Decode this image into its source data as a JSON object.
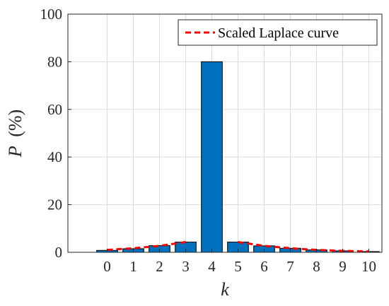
{
  "chart_data": {
    "type": "bar",
    "categories": [
      "0",
      "1",
      "2",
      "3",
      "4",
      "5",
      "6",
      "7",
      "8",
      "9",
      "10"
    ],
    "series": [
      {
        "values": [
          0.8,
          1.5,
          2.8,
          4.3,
          80.0,
          4.3,
          2.7,
          1.7,
          1.0,
          0.6,
          0.3
        ],
        "color": "#0072BD"
      }
    ],
    "overlay": {
      "name": "Scaled Laplace curve",
      "type": "line",
      "style": "dashed",
      "color": "#FF0000",
      "x": [
        0,
        1,
        2,
        3,
        5,
        6,
        7,
        8,
        9,
        10
      ],
      "y": [
        1.0,
        1.7,
        2.7,
        4.3,
        4.3,
        2.7,
        1.7,
        1.0,
        0.6,
        0.35
      ]
    },
    "xlabel": "k",
    "ylabel_symbol": "P",
    "ylabel_unit": "(%)",
    "ylim": [
      0,
      100
    ],
    "yticks": [
      "0",
      "20",
      "40",
      "60",
      "80",
      "100"
    ],
    "grid": true,
    "legend_position": "top-right"
  }
}
